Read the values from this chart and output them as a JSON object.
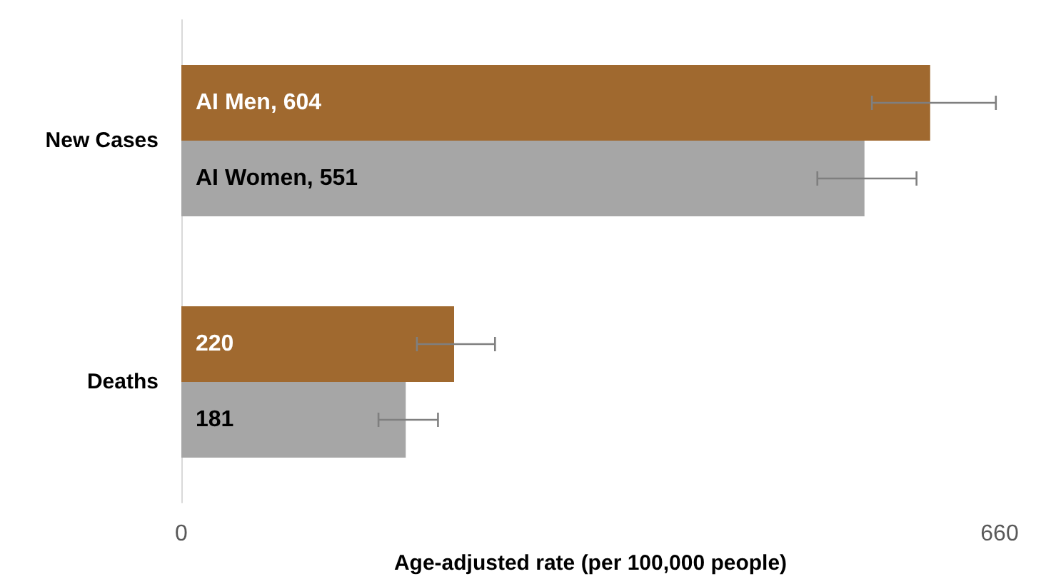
{
  "chart_data": {
    "type": "bar",
    "orientation": "horizontal",
    "xlabel": "Age-adjusted rate (per 100,000 people)",
    "categories": [
      "New Cases",
      "Deaths"
    ],
    "xlim": [
      0,
      660
    ],
    "xticks": [
      0,
      660
    ],
    "grid": false,
    "series": [
      {
        "color": "#a0692f",
        "values": [
          604,
          220
        ],
        "errors": [
          [
            557,
            657
          ],
          [
            190,
            253
          ]
        ],
        "value_labels": [
          "AI Men, 604",
          "220"
        ]
      },
      {
        "color": "#a6a6a6",
        "values": [
          551,
          181
        ],
        "errors": [
          [
            513,
            593
          ],
          [
            159,
            207
          ]
        ],
        "value_labels": [
          "AI Women, 551",
          "181"
        ]
      }
    ]
  }
}
